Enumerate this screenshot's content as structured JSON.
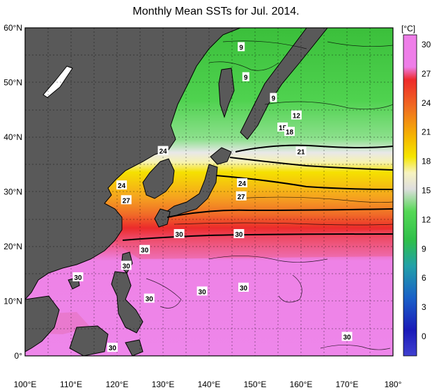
{
  "title": "Monthly Mean SSTs for Jul. 2014.",
  "colorbar": {
    "unit": "[°C]",
    "ticks": [
      "30",
      "27",
      "24",
      "21",
      "18",
      "15",
      "12",
      "9",
      "6",
      "3",
      "0"
    ],
    "colors": {
      "30": "#ee7ee8",
      "27": "#ee2a2a",
      "24": "#f58220",
      "21": "#f5d800",
      "18": "#f8f3b0",
      "15": "#dcdcdc",
      "12": "#5ddc5d",
      "9": "#3fc73f",
      "6": "#2aa89a",
      "3": "#1a73c9",
      "0": "#1a1ab5"
    }
  },
  "axes": {
    "lon_labels": [
      "100°E",
      "110°E",
      "120°E",
      "130°E",
      "140°E",
      "150°E",
      "160°E",
      "170°E",
      "180°"
    ],
    "lat_labels": [
      "60°N",
      "50°N",
      "40°N",
      "30°N",
      "20°N",
      "10°N",
      "0°"
    ]
  },
  "contour_labels": [
    {
      "text": "9",
      "lon": 147.0,
      "lat": 56.5
    },
    {
      "text": "9",
      "lon": 148.0,
      "lat": 51.0
    },
    {
      "text": "9",
      "lon": 154.0,
      "lat": 47.2
    },
    {
      "text": "12",
      "lon": 159.0,
      "lat": 44.0
    },
    {
      "text": "15",
      "lon": 156.0,
      "lat": 41.8
    },
    {
      "text": "18",
      "lon": 157.5,
      "lat": 41.0
    },
    {
      "text": "21",
      "lon": 160.0,
      "lat": 37.4
    },
    {
      "text": "24",
      "lon": 130.0,
      "lat": 37.5
    },
    {
      "text": "24",
      "lon": 121.0,
      "lat": 31.2
    },
    {
      "text": "24",
      "lon": 147.2,
      "lat": 31.6
    },
    {
      "text": "27",
      "lon": 122.0,
      "lat": 28.5
    },
    {
      "text": "27",
      "lon": 147.0,
      "lat": 29.2
    },
    {
      "text": "30",
      "lon": 133.5,
      "lat": 22.3
    },
    {
      "text": "30",
      "lon": 146.5,
      "lat": 22.3
    },
    {
      "text": "30",
      "lon": 126.0,
      "lat": 19.4
    },
    {
      "text": "30",
      "lon": 122.0,
      "lat": 16.5
    },
    {
      "text": "30",
      "lon": 111.5,
      "lat": 14.4
    },
    {
      "text": "30",
      "lon": 138.5,
      "lat": 11.8
    },
    {
      "text": "30",
      "lon": 147.5,
      "lat": 12.5
    },
    {
      "text": "30",
      "lon": 127.0,
      "lat": 10.5
    },
    {
      "text": "30",
      "lon": 170.0,
      "lat": 3.5
    },
    {
      "text": "30",
      "lon": 119.0,
      "lat": 1.5
    }
  ]
}
